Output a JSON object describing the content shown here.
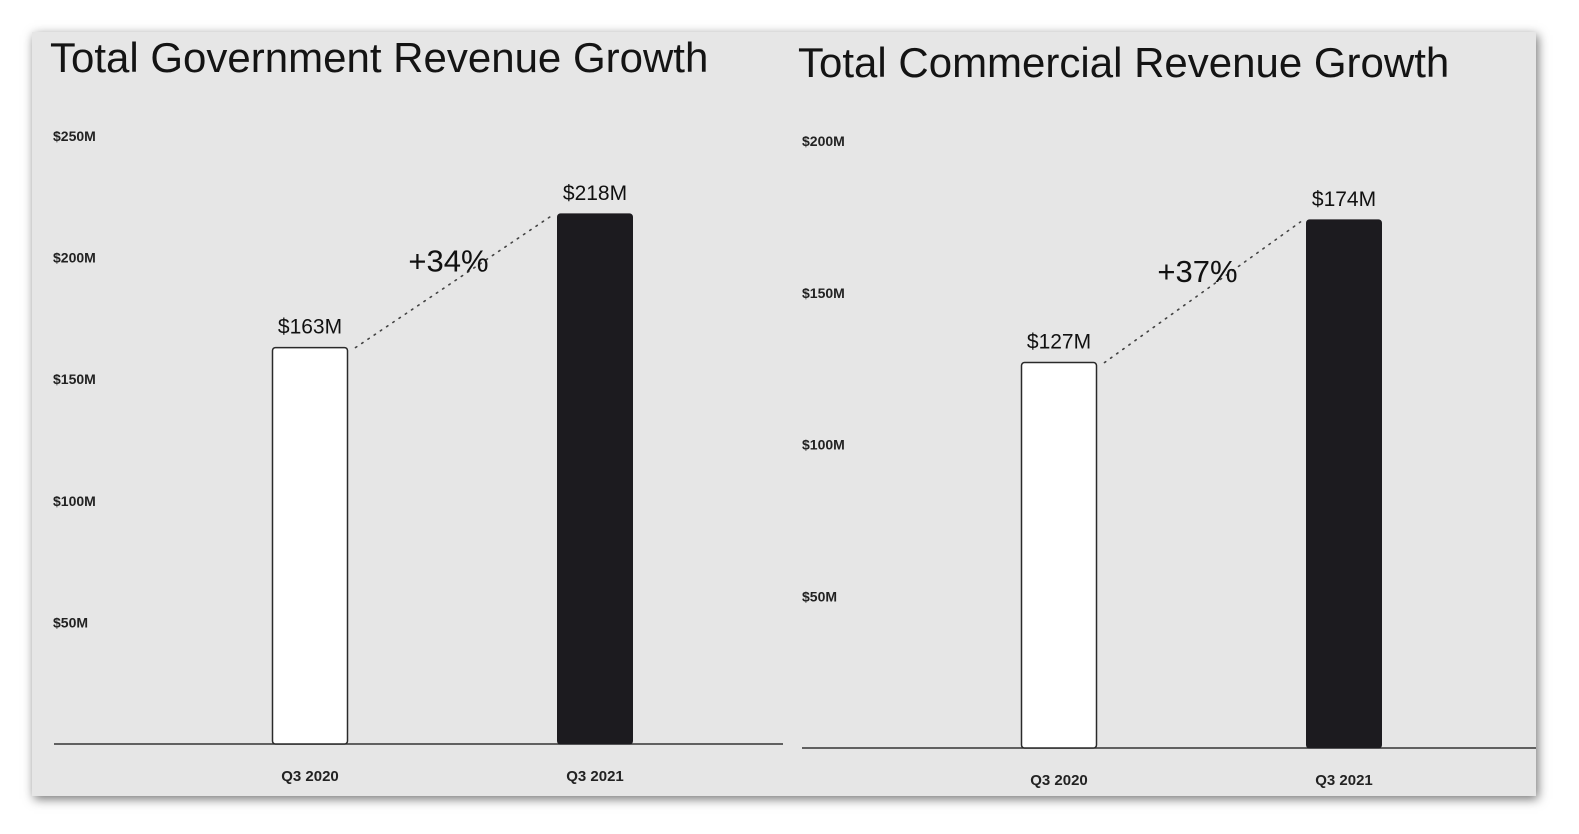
{
  "chart_data": [
    {
      "type": "bar",
      "title": "Total Government Revenue Growth",
      "categories": [
        "Q3 2020",
        "Q3 2021"
      ],
      "values": [
        163,
        218
      ],
      "value_labels": [
        "$163M",
        "$218M"
      ],
      "growth_label": "+34%",
      "ylim": [
        0,
        250
      ],
      "yticks": [
        50,
        100,
        150,
        200,
        250
      ],
      "ytick_labels": [
        "$50M",
        "$100M",
        "$150M",
        "$200M",
        "$250M"
      ],
      "bar_styles": [
        "outline",
        "filled"
      ],
      "xlabel": "",
      "ylabel": "",
      "grid": false
    },
    {
      "type": "bar",
      "title": "Total Commercial Revenue Growth",
      "categories": [
        "Q3 2020",
        "Q3 2021"
      ],
      "values": [
        127,
        174
      ],
      "value_labels": [
        "$127M",
        "$174M"
      ],
      "growth_label": "+37%",
      "ylim": [
        0,
        200
      ],
      "yticks": [
        50,
        100,
        150,
        200
      ],
      "ytick_labels": [
        "$50M",
        "$100M",
        "$150M",
        "$200M"
      ],
      "bar_styles": [
        "outline",
        "filled"
      ],
      "xlabel": "",
      "ylabel": "",
      "grid": false
    }
  ],
  "colors": {
    "background": "#e6e6e6",
    "filled_bar": "#1c1b1f",
    "outline_bar_fill": "#ffffff",
    "axis": "#333333"
  }
}
